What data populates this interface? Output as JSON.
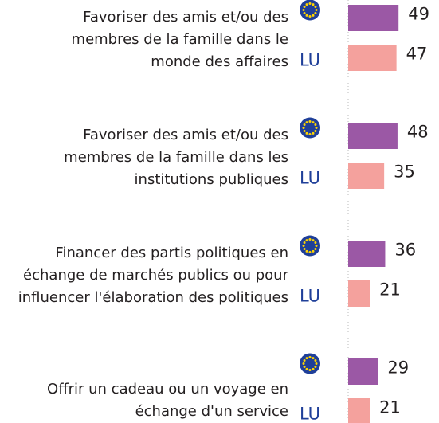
{
  "chart_data": {
    "type": "bar",
    "orientation": "horizontal",
    "categories": [
      [
        "Favoriser des amis et/ou des",
        "membres de la famille dans le",
        "monde des affaires"
      ],
      [
        "Favoriser des amis et/ou des",
        "membres de la famille dans les",
        "institutions publiques"
      ],
      [
        "Financer des partis politiques en",
        "échange de marchés publics ou pour",
        "influencer l'élaboration des politiques"
      ],
      [
        "Offrir un cadeau ou un voyage en",
        "échange d'un service"
      ]
    ],
    "series": [
      {
        "color": "#9b58a5",
        "values": [
          49,
          48,
          36,
          29
        ]
      },
      {
        "name": "LU",
        "color": "#f4a19d",
        "values": [
          47,
          35,
          21,
          21
        ]
      }
    ]
  }
}
